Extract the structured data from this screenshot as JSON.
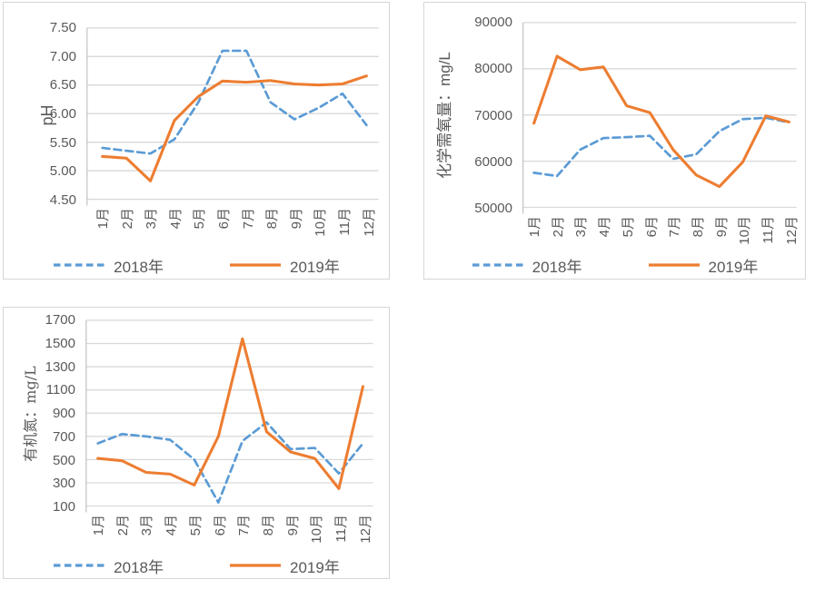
{
  "colors": {
    "series_2018": "#5B9BD5",
    "series_2019": "#ED7D31",
    "gridline": "#D9D9D9",
    "axis_line": "#C6C6C6",
    "text": "#595959",
    "chart_border": "#D6D6D6",
    "background": "#FFFFFF"
  },
  "chart_data": [
    {
      "type": "line",
      "title": "",
      "ylabel": "pH",
      "xlabel": "",
      "grid": true,
      "legend_position": "bottom",
      "ylim": [
        4.5,
        7.5
      ],
      "yticks": [
        "7.50",
        "7.00",
        "6.50",
        "6.00",
        "5.50",
        "5.00",
        "4.50"
      ],
      "categories": [
        "1月",
        "2月",
        "3月",
        "4月",
        "5月",
        "6月",
        "7月",
        "8月",
        "9月",
        "10月",
        "11月",
        "12月"
      ],
      "series": [
        {
          "name": "2018年",
          "style": "dashed",
          "color": "#5B9BD5",
          "values": [
            5.4,
            5.35,
            5.3,
            5.55,
            6.2,
            7.1,
            7.1,
            6.2,
            5.9,
            6.1,
            6.35,
            5.8
          ]
        },
        {
          "name": "2019年",
          "style": "solid",
          "color": "#ED7D31",
          "values": [
            5.25,
            5.22,
            4.82,
            5.88,
            6.3,
            6.57,
            6.55,
            6.58,
            6.52,
            6.5,
            6.52,
            6.66
          ]
        }
      ]
    },
    {
      "type": "line",
      "title": "",
      "ylabel": "化学需氧量：mg/L",
      "xlabel": "",
      "grid": true,
      "legend_position": "bottom",
      "ylim": [
        50000,
        90000
      ],
      "yticks": [
        "90000",
        "80000",
        "70000",
        "60000",
        "50000"
      ],
      "categories": [
        "1月",
        "2月",
        "3月",
        "4月",
        "5月",
        "6月",
        "7月",
        "8月",
        "9月",
        "10月",
        "11月",
        "12月"
      ],
      "series": [
        {
          "name": "2018年",
          "style": "dashed",
          "color": "#5B9BD5",
          "values": [
            57500,
            56800,
            62500,
            65000,
            65200,
            65500,
            60500,
            61500,
            66500,
            69100,
            69400,
            68400
          ]
        },
        {
          "name": "2019年",
          "style": "solid",
          "color": "#ED7D31",
          "values": [
            68200,
            82700,
            79800,
            80400,
            72000,
            70500,
            62500,
            57000,
            54500,
            59800,
            69800,
            68500
          ]
        }
      ]
    },
    {
      "type": "line",
      "title": "",
      "ylabel": "有机氮：mg/L",
      "xlabel": "",
      "grid": true,
      "legend_position": "bottom",
      "ylim": [
        100,
        1700
      ],
      "yticks": [
        "1700",
        "1500",
        "1300",
        "1100",
        "900",
        "700",
        "500",
        "300",
        "100"
      ],
      "categories": [
        "1月",
        "2月",
        "3月",
        "4月",
        "5月",
        "6月",
        "7月",
        "8月",
        "9月",
        "10月",
        "11月",
        "12月"
      ],
      "series": [
        {
          "name": "2018年",
          "style": "dashed",
          "color": "#5B9BD5",
          "values": [
            640,
            720,
            700,
            670,
            500,
            130,
            660,
            820,
            590,
            600,
            380,
            640
          ]
        },
        {
          "name": "2019年",
          "style": "solid",
          "color": "#ED7D31",
          "values": [
            510,
            490,
            390,
            375,
            280,
            700,
            1540,
            740,
            565,
            510,
            250,
            1130
          ]
        }
      ]
    }
  ]
}
